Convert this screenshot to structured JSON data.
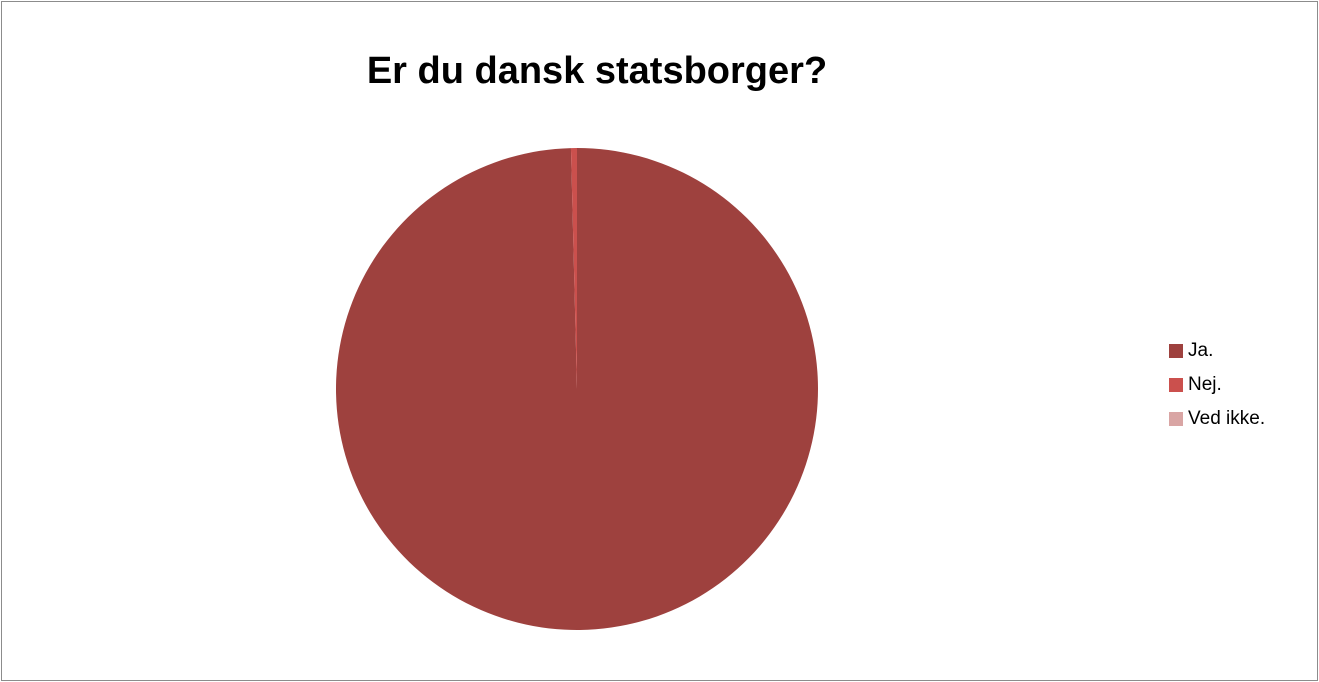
{
  "chart_data": {
    "type": "pie",
    "title": "Er du dansk statsborger?",
    "categories": [
      "Ja.",
      "Nej.",
      "Ved ikke."
    ],
    "values": [
      99.6,
      0.4,
      0.0
    ],
    "unit": "",
    "colors": [
      "#9e413e",
      "#cb504d",
      "#d9a5a4"
    ],
    "start_angle_deg": 0,
    "direction": "clockwise",
    "legend_position": "right"
  }
}
